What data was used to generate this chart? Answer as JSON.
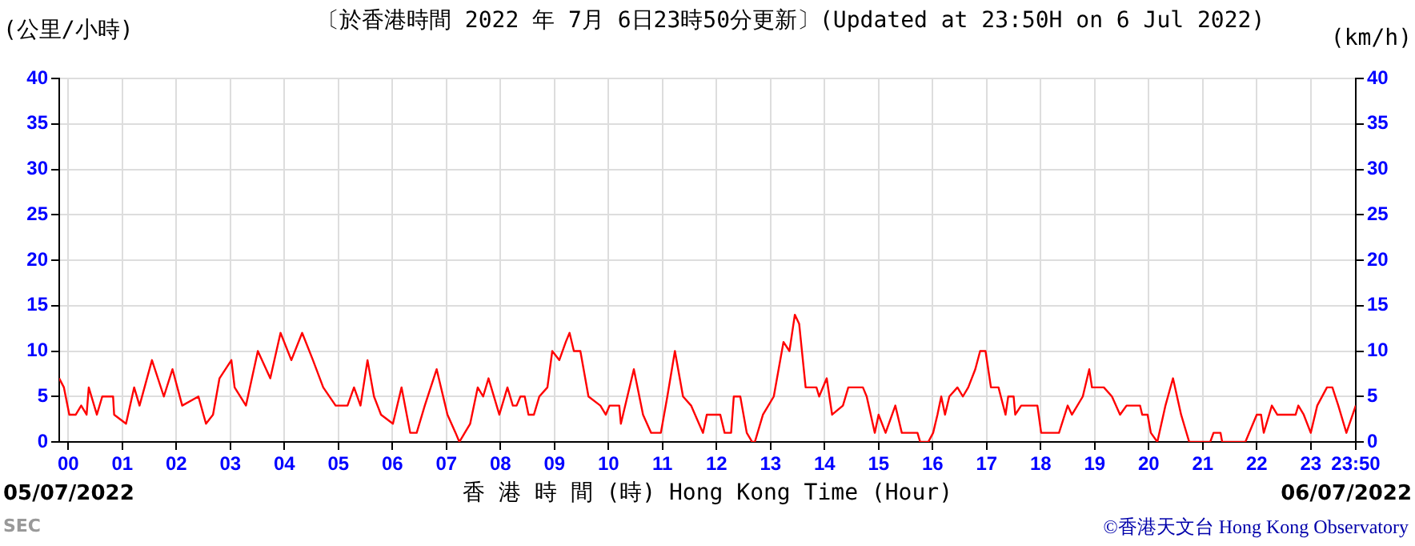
{
  "chart_data": {
    "type": "line",
    "title": "〔於香港時間 2022 年 7月 6日23時50分更新〕(Updated at 23:50H on 6 Jul 2022)",
    "ylabel": "(公里/小時)",
    "y2label": "(km/h)",
    "xlabel": "香 港 時 間 (時) Hong Kong Time (Hour)",
    "annotations": [
      "05/07/2022",
      "06/07/2022",
      "SEC",
      "©香港天文台 Hong Kong Observatory"
    ],
    "xlim": [
      -0.1667,
      23.8333
    ],
    "xticks": [
      {
        "value": 0,
        "label": "00"
      },
      {
        "value": 1,
        "label": "01"
      },
      {
        "value": 2,
        "label": "02"
      },
      {
        "value": 3,
        "label": "03"
      },
      {
        "value": 4,
        "label": "04"
      },
      {
        "value": 5,
        "label": "05"
      },
      {
        "value": 6,
        "label": "06"
      },
      {
        "value": 7,
        "label": "07"
      },
      {
        "value": 8,
        "label": "08"
      },
      {
        "value": 9,
        "label": "09"
      },
      10,
      11,
      12,
      13,
      14,
      15,
      16,
      17,
      18,
      19,
      20,
      21,
      22,
      23,
      {
        "value": 23.8333,
        "label": "23:50"
      }
    ],
    "ylim": [
      0,
      40
    ],
    "yticks": [
      0,
      5,
      10,
      15,
      20,
      25,
      30,
      35,
      40
    ],
    "y2lim": [
      0,
      40
    ],
    "y2ticks": [
      0,
      5,
      10,
      15,
      20,
      25,
      30,
      35,
      40
    ],
    "grid": true,
    "legend": false,
    "marker": "none",
    "line_style": "solid",
    "series": [
      {
        "color": "#ff0000",
        "x": [
          -0.1667,
          -0.08,
          0.02,
          0.14,
          0.24,
          0.34,
          0.38,
          0.53,
          0.63,
          0.83,
          0.85,
          1.07,
          1.22,
          1.32,
          1.55,
          1.77,
          1.93,
          2.11,
          2.41,
          2.55,
          2.68,
          2.8,
          3.02,
          3.08,
          3.29,
          3.51,
          3.74,
          3.93,
          4.13,
          4.33,
          4.53,
          4.72,
          4.95,
          5.17,
          5.29,
          5.41,
          5.54,
          5.66,
          5.79,
          6.01,
          6.17,
          6.33,
          6.45,
          6.6,
          6.82,
          7.02,
          7.17,
          7.24,
          7.34,
          7.44,
          7.58,
          7.68,
          7.78,
          7.98,
          8.13,
          8.23,
          8.3,
          8.37,
          8.45,
          8.52,
          8.62,
          8.72,
          8.87,
          8.96,
          9.09,
          9.21,
          9.28,
          9.36,
          9.48,
          9.63,
          9.85,
          9.95,
          10.02,
          10.2,
          10.23,
          10.47,
          10.64,
          10.79,
          10.97,
          11.09,
          11.23,
          11.38,
          11.53,
          11.75,
          11.82,
          12.07,
          12.15,
          12.27,
          12.32,
          12.44,
          12.56,
          12.66,
          12.71,
          12.86,
          13.06,
          13.24,
          13.35,
          13.45,
          13.53,
          13.65,
          13.85,
          13.9,
          14.04,
          14.14,
          14.34,
          14.44,
          14.71,
          14.78,
          14.93,
          15.0,
          15.13,
          15.31,
          15.43,
          15.72,
          15.77,
          15.92,
          16.01,
          16.09,
          16.16,
          16.23,
          16.31,
          16.46,
          16.56,
          16.66,
          16.79,
          16.88,
          16.98,
          17.08,
          17.22,
          17.35,
          17.4,
          17.5,
          17.53,
          17.64,
          17.94,
          18.01,
          18.34,
          18.5,
          18.58,
          18.78,
          18.9,
          18.95,
          19.17,
          19.32,
          19.47,
          19.59,
          19.84,
          19.88,
          19.98,
          20.04,
          20.16,
          20.31,
          20.45,
          20.6,
          20.75,
          21.14,
          21.2,
          21.33,
          21.36,
          21.79,
          22.0,
          22.08,
          22.13,
          22.28,
          22.38,
          22.72,
          22.77,
          22.87,
          23.0,
          23.12,
          23.3,
          23.4,
          23.51,
          23.66,
          23.8333
        ],
        "values": [
          7,
          6,
          3,
          3,
          4,
          3,
          6,
          3,
          5,
          5,
          3,
          2,
          6,
          4,
          9,
          5,
          8,
          4,
          5,
          2,
          3,
          7,
          9,
          6,
          4,
          10,
          7,
          12,
          9,
          12,
          9,
          6,
          4,
          4,
          6,
          4,
          9,
          5,
          3,
          2,
          6,
          1,
          1,
          4,
          8,
          3,
          1,
          0,
          1,
          2,
          6,
          5,
          7,
          3,
          6,
          4,
          4,
          5,
          5,
          3,
          3,
          5,
          6,
          10,
          9,
          11,
          12,
          10,
          10,
          5,
          4,
          3,
          4,
          4,
          2,
          8,
          3,
          1,
          1,
          5,
          10,
          5,
          4,
          1,
          3,
          3,
          1,
          1,
          5,
          5,
          1,
          0,
          0,
          3,
          5,
          11,
          10,
          14,
          13,
          6,
          6,
          5,
          7,
          3,
          4,
          6,
          6,
          5,
          1,
          3,
          1,
          4,
          1,
          1,
          0,
          0,
          1,
          3,
          5,
          3,
          5,
          6,
          5,
          6,
          8,
          10,
          10,
          6,
          6,
          3,
          5,
          5,
          3,
          4,
          4,
          1,
          1,
          4,
          3,
          5,
          8,
          6,
          6,
          5,
          3,
          4,
          4,
          3,
          3,
          1,
          0,
          4,
          7,
          3,
          0,
          0,
          1,
          1,
          0,
          0,
          3,
          3,
          1,
          4,
          3,
          3,
          4,
          3,
          1,
          4,
          6,
          6,
          4,
          1,
          4
        ]
      }
    ]
  }
}
